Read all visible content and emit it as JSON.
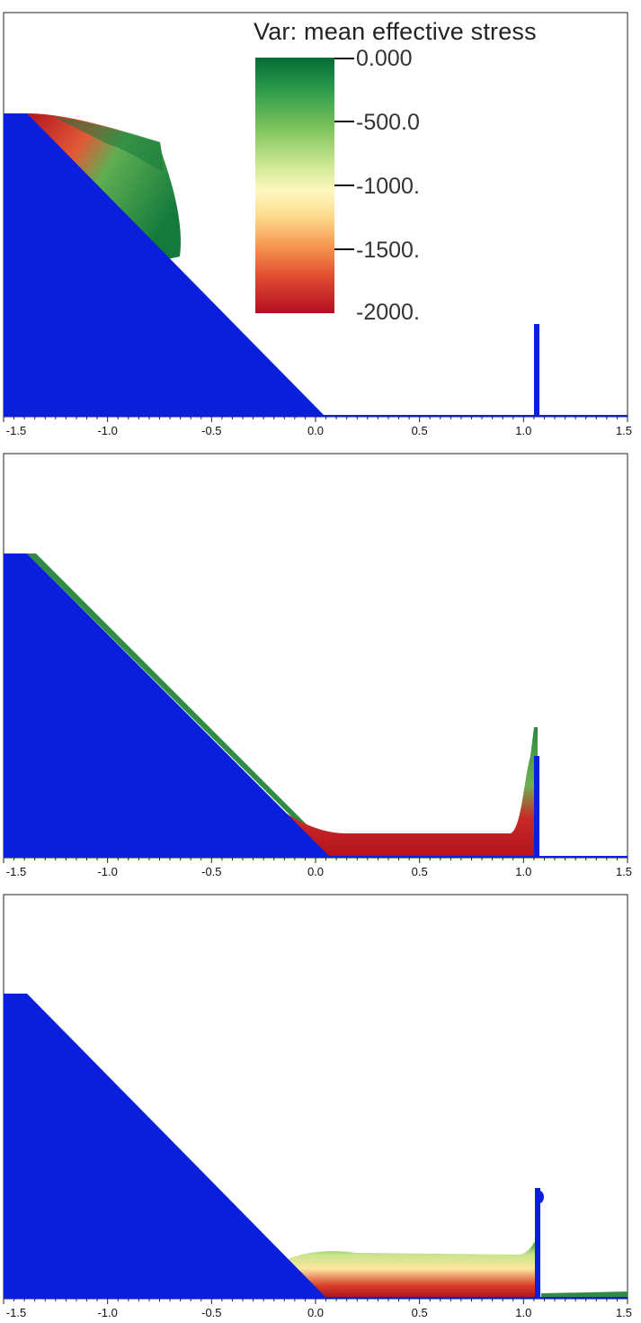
{
  "colorbar": {
    "title": "Var: mean effective stress",
    "ticks": [
      "0.000",
      "-500.0",
      "-1000.",
      "-1500.",
      "-2000."
    ],
    "colors": [
      "#056b37",
      "#7fc55e",
      "#fff7c0",
      "#f6954f",
      "#b30e22"
    ]
  },
  "axis": {
    "x_ticks": [
      "-1.5",
      "-1.0",
      "-0.5",
      "0.0",
      "0.5",
      "1.0",
      "1.5"
    ],
    "x_values": [
      -1.5,
      -1.0,
      -0.5,
      0.0,
      0.5,
      1.0,
      1.5
    ]
  },
  "colors": {
    "rigid_body": "#0a1fdc",
    "soil_green": "#1f7a3c",
    "soil_red": "#b3141f",
    "frame": "#222222"
  },
  "panels": [
    {
      "id": "stage-1"
    },
    {
      "id": "stage-2"
    },
    {
      "id": "stage-3"
    }
  ]
}
